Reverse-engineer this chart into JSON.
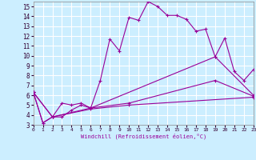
{
  "xlabel": "Windchill (Refroidissement éolien,°C)",
  "bg_color": "#cceeff",
  "grid_color": "#ffffff",
  "line_color": "#990099",
  "xlim": [
    0,
    23
  ],
  "ylim": [
    3,
    15.5
  ],
  "xticks": [
    0,
    1,
    2,
    3,
    4,
    5,
    6,
    7,
    8,
    9,
    10,
    11,
    12,
    13,
    14,
    15,
    16,
    17,
    18,
    19,
    20,
    21,
    22,
    23
  ],
  "yticks": [
    3,
    4,
    5,
    6,
    7,
    8,
    9,
    10,
    11,
    12,
    13,
    14,
    15
  ],
  "series1": [
    [
      0,
      6.3
    ],
    [
      1,
      3.2
    ],
    [
      2,
      3.8
    ],
    [
      3,
      5.2
    ],
    [
      4,
      5.0
    ],
    [
      5,
      5.2
    ],
    [
      6,
      4.7
    ],
    [
      7,
      7.5
    ],
    [
      8,
      11.7
    ],
    [
      9,
      10.5
    ],
    [
      10,
      13.9
    ],
    [
      11,
      13.6
    ],
    [
      12,
      15.5
    ],
    [
      13,
      15.0
    ],
    [
      14,
      14.1
    ],
    [
      15,
      14.1
    ],
    [
      16,
      13.7
    ],
    [
      17,
      12.5
    ],
    [
      18,
      12.7
    ],
    [
      19,
      9.9
    ],
    [
      20,
      11.8
    ],
    [
      21,
      8.4
    ],
    [
      22,
      7.5
    ],
    [
      23,
      8.6
    ]
  ],
  "series2": [
    [
      0,
      6.3
    ],
    [
      1,
      3.2
    ],
    [
      2,
      3.8
    ],
    [
      3,
      3.8
    ],
    [
      4,
      4.5
    ],
    [
      5,
      5.0
    ],
    [
      6,
      4.7
    ],
    [
      19,
      9.9
    ],
    [
      23,
      6.0
    ]
  ],
  "series3": [
    [
      0,
      6.3
    ],
    [
      2,
      3.8
    ],
    [
      6,
      4.7
    ],
    [
      10,
      5.2
    ],
    [
      19,
      7.5
    ],
    [
      23,
      5.9
    ]
  ],
  "series4": [
    [
      0,
      6.3
    ],
    [
      2,
      3.8
    ],
    [
      6,
      4.6
    ],
    [
      10,
      5.0
    ],
    [
      23,
      5.8
    ]
  ]
}
